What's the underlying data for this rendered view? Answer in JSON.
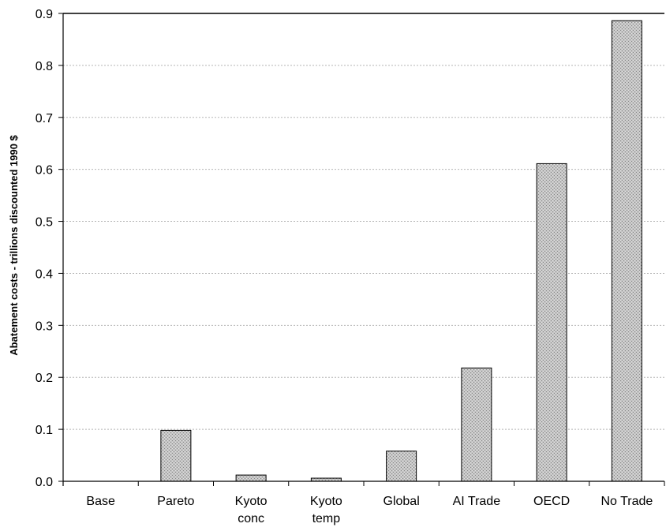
{
  "chart_data": {
    "type": "bar",
    "title": "",
    "xlabel": "",
    "ylabel": "Abatement costs - trillions discounted 1990 $",
    "ylim": [
      0,
      0.9
    ],
    "yticks": [
      "0.0",
      "0.1",
      "0.2",
      "0.3",
      "0.4",
      "0.5",
      "0.6",
      "0.7",
      "0.8",
      "0.9"
    ],
    "grid": true,
    "categories": [
      [
        "Base"
      ],
      [
        "Pareto"
      ],
      [
        "Kyoto",
        "conc"
      ],
      [
        "Kyoto",
        "temp"
      ],
      [
        "Global"
      ],
      [
        "AI Trade"
      ],
      [
        "OECD"
      ],
      [
        "No Trade"
      ]
    ],
    "values": [
      0.0,
      0.098,
      0.012,
      0.006,
      0.058,
      0.218,
      0.611,
      0.886
    ],
    "bar_color": "#b8b8b8"
  }
}
